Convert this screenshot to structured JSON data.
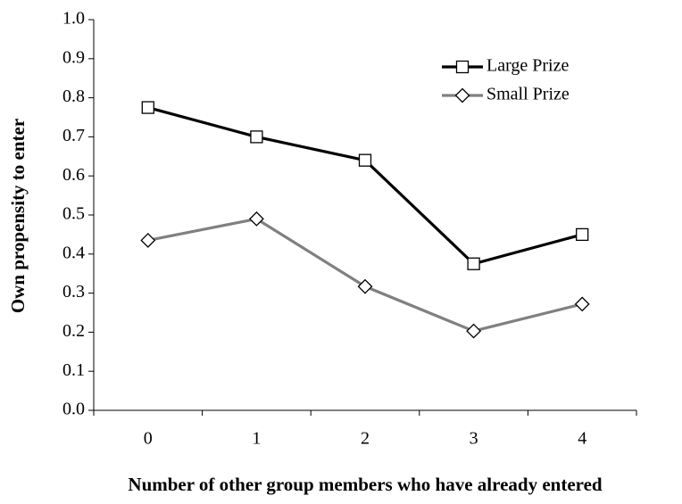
{
  "chart_data": {
    "type": "line",
    "x_label": "Number of other group members who have already entered",
    "y_label": "Own propensity to enter",
    "categories": [
      "0",
      "1",
      "2",
      "3",
      "4"
    ],
    "series": [
      {
        "name": "Large Prize",
        "color": "#000000",
        "marker": "square",
        "values": [
          0.775,
          0.7,
          0.64,
          0.375,
          0.45
        ]
      },
      {
        "name": "Small Prize",
        "color": "#808080",
        "marker": "diamond",
        "values": [
          0.435,
          0.49,
          0.317,
          0.203,
          0.272
        ]
      }
    ],
    "ylim": [
      0,
      1
    ],
    "yticks": [
      {
        "value": 0,
        "label": "0.0"
      },
      0.1,
      0.2,
      0.3,
      0.4,
      0.5,
      0.6,
      0.7,
      0.8,
      0.9,
      {
        "value": 1,
        "label": "1.0"
      }
    ],
    "grid": false,
    "legend": "top-right"
  }
}
